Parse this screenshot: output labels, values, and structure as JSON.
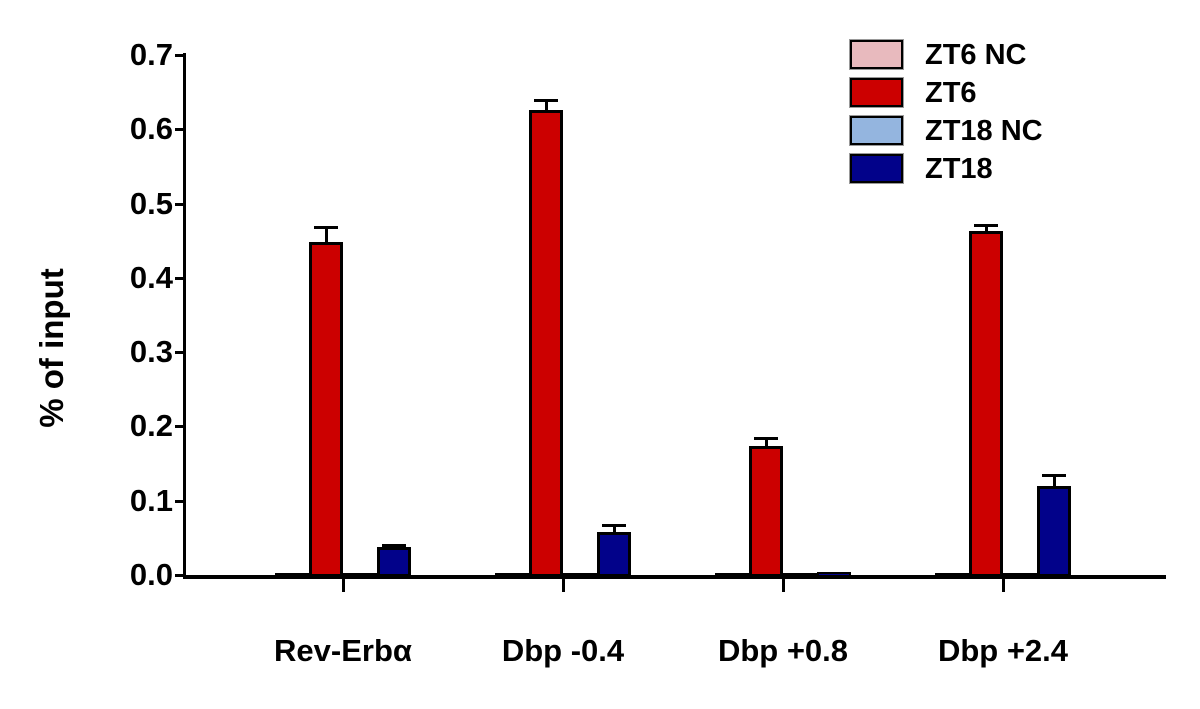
{
  "chart_data": {
    "type": "bar",
    "title": "",
    "ylabel": "% of input",
    "xlabel": "",
    "ylim": [
      0,
      0.7
    ],
    "ytick_step": 0.1,
    "ytick_labels": [
      "0.0",
      "0.1",
      "0.2",
      "0.3",
      "0.4",
      "0.5",
      "0.6",
      "0.7"
    ],
    "grid": false,
    "legend_position": "top-right",
    "categories": [
      "Rev-Erbα",
      "Dbp -0.4",
      "Dbp +0.8",
      "Dbp +2.4"
    ],
    "series": [
      {
        "name": "ZT6 NC",
        "color": "#E8BABE",
        "values": [
          0.006,
          0.003,
          0.003,
          0.003
        ],
        "errors": [
          0.001,
          0.001,
          0.001,
          0.001
        ]
      },
      {
        "name": "ZT6",
        "color": "#CC0000",
        "values": [
          0.451,
          0.628,
          0.176,
          0.466
        ],
        "errors": [
          0.022,
          0.015,
          0.012,
          0.009
        ]
      },
      {
        "name": "ZT18 NC",
        "color": "#94B5DF",
        "values": [
          0.002,
          0.003,
          0.001,
          0.005
        ],
        "errors": [
          0.001,
          0.001,
          0.001,
          0.002
        ]
      },
      {
        "name": "ZT18",
        "color": "#02028A",
        "values": [
          0.04,
          0.061,
          0.007,
          0.122
        ],
        "errors": [
          0.004,
          0.011,
          0.002,
          0.016
        ]
      }
    ]
  }
}
